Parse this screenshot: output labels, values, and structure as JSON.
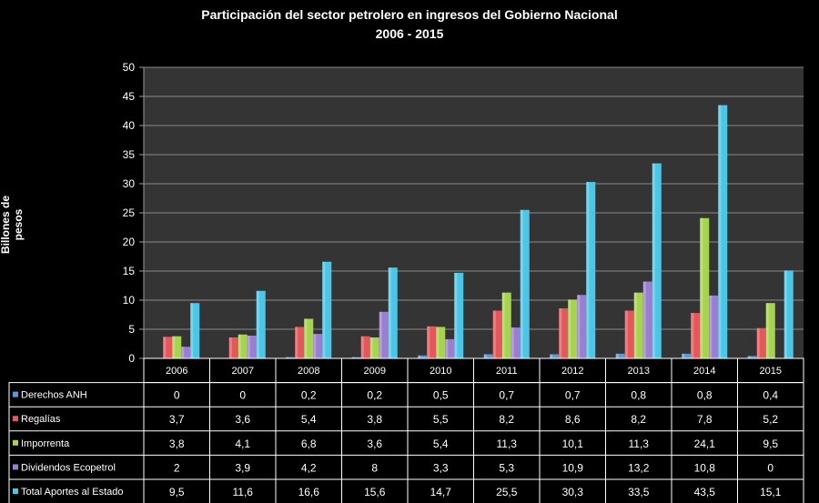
{
  "chart_data": {
    "type": "bar",
    "title": "Participación del sector petrolero en ingresos del Gobierno Nacional",
    "subtitle": "2006 - 2015",
    "ylabel": "Billones de pesos",
    "xlabel": "",
    "ylim": [
      0,
      50
    ],
    "yticks": [
      "0",
      "5",
      "10",
      "15",
      "20",
      "25",
      "30",
      "35",
      "40",
      "45",
      "50"
    ],
    "grid": true,
    "legend": "data-table-left",
    "categories": [
      "2006",
      "2007",
      "2008",
      "2009",
      "2010",
      "2011",
      "2012",
      "2013",
      "2014",
      "2015"
    ],
    "series": [
      {
        "name": "Derechos ANH",
        "color": "#5b9bd5",
        "values": [
          0,
          0,
          0.2,
          0.2,
          0.5,
          0.7,
          0.7,
          0.8,
          0.8,
          0.4
        ],
        "labels": [
          "0",
          "0",
          "0,2",
          "0,2",
          "0,5",
          "0,7",
          "0,7",
          "0,8",
          "0,8",
          "0,4"
        ]
      },
      {
        "name": "Regalías",
        "color": "#e5575a",
        "values": [
          3.7,
          3.6,
          5.4,
          3.8,
          5.5,
          8.2,
          8.6,
          8.2,
          7.8,
          5.2
        ],
        "labels": [
          "3,7",
          "3,6",
          "5,4",
          "3,8",
          "5,5",
          "8,2",
          "8,6",
          "8,2",
          "7,8",
          "5,2"
        ]
      },
      {
        "name": "Imporrenta",
        "color": "#a6d44f",
        "values": [
          3.8,
          4.1,
          6.8,
          3.6,
          5.4,
          11.3,
          10.1,
          11.3,
          24.1,
          9.5
        ],
        "labels": [
          "3,8",
          "4,1",
          "6,8",
          "3,6",
          "5,4",
          "11,3",
          "10,1",
          "11,3",
          "24,1",
          "9,5"
        ]
      },
      {
        "name": "Dividendos Ecopetrol",
        "color": "#9a7fd1",
        "values": [
          2,
          3.9,
          4.2,
          8,
          3.3,
          5.3,
          10.9,
          13.2,
          10.8,
          0
        ],
        "labels": [
          "2",
          "3,9",
          "4,2",
          "8",
          "3,3",
          "5,3",
          "10,9",
          "13,2",
          "10,8",
          "0"
        ]
      },
      {
        "name": "Total Aportes al Estado",
        "color": "#4cc6e6",
        "values": [
          9.5,
          11.6,
          16.6,
          15.6,
          14.7,
          25.5,
          30.3,
          33.5,
          43.5,
          15.1
        ],
        "labels": [
          "9,5",
          "11,6",
          "16,6",
          "15,6",
          "14,7",
          "25,5",
          "30,3",
          "33,5",
          "43,5",
          "15,1"
        ]
      }
    ]
  }
}
